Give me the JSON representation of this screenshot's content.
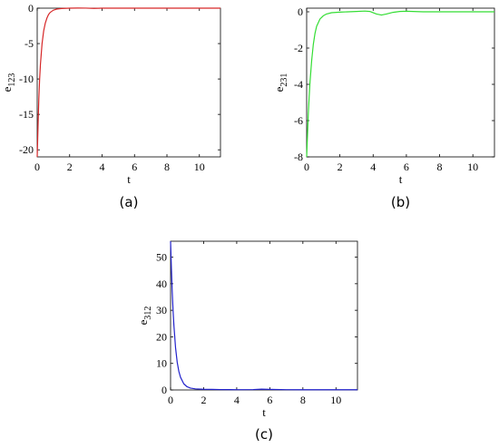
{
  "chart_data": [
    {
      "type": "line",
      "panel_label": "(a)",
      "xlabel": "t",
      "ylabel_base": "e",
      "ylabel_sub": "123",
      "xlim": [
        0,
        11.3
      ],
      "ylim": [
        -21,
        0
      ],
      "xticks": [
        0,
        2,
        4,
        6,
        8,
        10
      ],
      "yticks": [
        0,
        -5,
        -10,
        -15,
        -20
      ],
      "grid": false,
      "series": [
        {
          "color": "#d62728",
          "x": [
            0,
            0.05,
            0.1,
            0.15,
            0.2,
            0.3,
            0.4,
            0.5,
            0.6,
            0.7,
            0.8,
            1.0,
            1.2,
            1.5,
            2.0,
            2.5,
            3.0,
            3.5,
            4.0,
            5.0,
            6.0,
            8.0,
            10.0,
            11.3
          ],
          "y": [
            -21,
            -16.8,
            -12.8,
            -10.0,
            -7.9,
            -5.0,
            -3.2,
            -2.1,
            -1.4,
            -0.9,
            -0.6,
            -0.28,
            -0.13,
            -0.05,
            0,
            0.02,
            0.01,
            -0.03,
            0,
            0,
            0,
            0,
            0,
            0
          ]
        }
      ]
    },
    {
      "type": "line",
      "panel_label": "(b)",
      "xlabel": "t",
      "ylabel_base": "e",
      "ylabel_sub": "231",
      "xlim": [
        0,
        11.3
      ],
      "ylim": [
        -8,
        0.2
      ],
      "xticks": [
        0,
        2,
        4,
        6,
        8,
        10
      ],
      "yticks": [
        0,
        -2,
        -4,
        -6,
        -8
      ],
      "grid": false,
      "series": [
        {
          "color": "#33dd33",
          "x": [
            0,
            0.05,
            0.1,
            0.15,
            0.2,
            0.3,
            0.4,
            0.5,
            0.6,
            0.8,
            1.0,
            1.2,
            1.5,
            2.0,
            2.5,
            3.0,
            3.5,
            3.8,
            4.2,
            4.5,
            4.8,
            5.2,
            5.6,
            6.0,
            7.0,
            8.0,
            10.0,
            11.3
          ],
          "y": [
            -8,
            -6.8,
            -5.6,
            -4.7,
            -3.9,
            -2.7,
            -1.8,
            -1.2,
            -0.8,
            -0.4,
            -0.22,
            -0.12,
            -0.05,
            -0.02,
            0,
            0.02,
            0.04,
            0.02,
            -0.12,
            -0.18,
            -0.12,
            -0.03,
            0.02,
            0.03,
            0,
            0,
            0,
            0
          ]
        }
      ]
    },
    {
      "type": "line",
      "panel_label": "(c)",
      "xlabel": "t",
      "ylabel_base": "e",
      "ylabel_sub": "312",
      "xlim": [
        0,
        11.3
      ],
      "ylim": [
        0,
        56
      ],
      "xticks": [
        0,
        2,
        4,
        6,
        8,
        10
      ],
      "yticks": [
        0,
        10,
        20,
        30,
        40,
        50
      ],
      "grid": false,
      "series": [
        {
          "color": "#2222cc",
          "x": [
            0,
            0.05,
            0.1,
            0.15,
            0.2,
            0.3,
            0.4,
            0.5,
            0.6,
            0.8,
            1.0,
            1.2,
            1.5,
            2.0,
            2.5,
            3.0,
            4.0,
            5.0,
            5.5,
            6.0,
            7.0,
            8.0,
            10.0,
            11.3
          ],
          "y": [
            56,
            46,
            37,
            30,
            24.5,
            16,
            10.5,
            7,
            4.8,
            2.3,
            1.2,
            0.7,
            0.4,
            0.25,
            0.2,
            0.15,
            0.1,
            0.15,
            0.3,
            0.2,
            0.1,
            0.08,
            0.08,
            0.08
          ]
        }
      ]
    }
  ]
}
